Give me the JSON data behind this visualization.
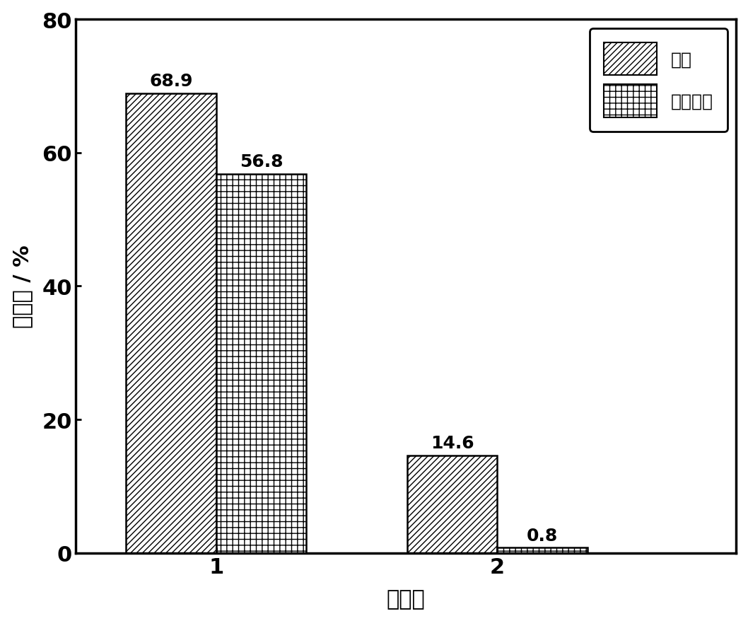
{
  "categories": [
    "1",
    "2"
  ],
  "series": [
    {
      "name": "苯胺",
      "values": [
        68.9,
        14.6
      ],
      "hatch": "////",
      "facecolor": "white",
      "edgecolor": "black"
    },
    {
      "name": "苯并噎吱",
      "values": [
        56.8,
        0.8
      ],
      "hatch": "++",
      "facecolor": "white",
      "edgecolor": "black"
    }
  ],
  "xlabel": "精制剂",
  "ylabel": "脱除率 / %",
  "ylim": [
    0,
    80
  ],
  "yticks": [
    0,
    20,
    40,
    60,
    80
  ],
  "bar_width": 0.32,
  "label_fontsize": 22,
  "tick_fontsize": 22,
  "annotation_fontsize": 18,
  "legend_fontsize": 18,
  "background_color": "#ffffff",
  "group_positions": [
    1,
    2
  ],
  "xlim": [
    0.5,
    2.85
  ]
}
